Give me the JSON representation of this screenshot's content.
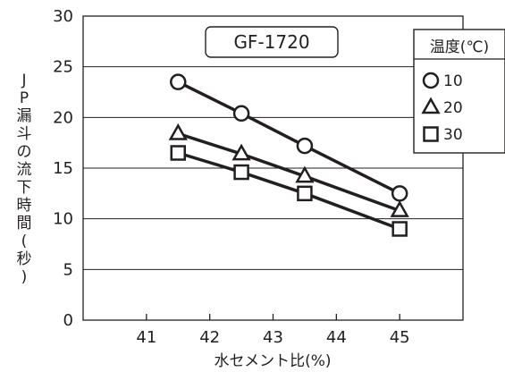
{
  "chart_data": {
    "type": "line",
    "title": "GF-1720",
    "xlabel": "水セメント比(%)",
    "ylabel": "JP漏斗の流下時間(秒)",
    "xlim": [
      40,
      46
    ],
    "ylim": [
      0,
      30
    ],
    "x_ticks": [
      41,
      42,
      43,
      44,
      45
    ],
    "y_ticks": [
      0,
      5,
      10,
      15,
      20,
      25,
      30
    ],
    "grid": "horizontal",
    "legend": {
      "title": "温度(℃)",
      "placement": "top-right"
    },
    "series": [
      {
        "name": "10",
        "marker": "circle",
        "x": [
          41.5,
          42.5,
          43.5,
          45
        ],
        "values": [
          23.5,
          20.4,
          17.2,
          12.5
        ]
      },
      {
        "name": "20",
        "marker": "triangle",
        "x": [
          41.5,
          42.5,
          43.5,
          45
        ],
        "values": [
          18.4,
          16.4,
          14.2,
          10.8
        ]
      },
      {
        "name": "30",
        "marker": "square",
        "x": [
          41.5,
          42.5,
          43.5,
          45
        ],
        "values": [
          16.5,
          14.6,
          12.5,
          9.0
        ]
      }
    ]
  }
}
